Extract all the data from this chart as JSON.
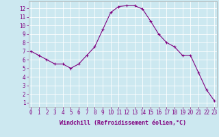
{
  "x": [
    0,
    1,
    2,
    3,
    4,
    5,
    6,
    7,
    8,
    9,
    10,
    11,
    12,
    13,
    14,
    15,
    16,
    17,
    18,
    19,
    20,
    21,
    22,
    23
  ],
  "y": [
    7,
    6.5,
    6,
    5.5,
    5.5,
    5,
    5.5,
    6.5,
    7.5,
    9.5,
    11.5,
    12.2,
    12.3,
    12.3,
    11.9,
    10.5,
    9,
    8,
    7.5,
    6.5,
    6.5,
    4.5,
    2.5,
    1.2
  ],
  "line_color": "#800080",
  "marker": "+",
  "bg_color": "#cce8f0",
  "grid_color": "#aacccc",
  "xlabel": "Windchill (Refroidissement éolien,°C)",
  "xlabel_color": "#800080",
  "tick_color": "#800080",
  "yticks": [
    1,
    2,
    3,
    4,
    5,
    6,
    7,
    8,
    9,
    10,
    11,
    12
  ],
  "xticks": [
    0,
    1,
    2,
    3,
    4,
    5,
    6,
    7,
    8,
    9,
    10,
    11,
    12,
    13,
    14,
    15,
    16,
    17,
    18,
    19,
    20,
    21,
    22,
    23
  ],
  "font_size": 5.5,
  "xlabel_fontsize": 6.0,
  "line_width": 0.8,
  "marker_size": 3,
  "marker_ew": 0.8,
  "xlim_left": -0.3,
  "xlim_right": 23.3,
  "ylim_bottom": 0.5,
  "ylim_top": 12.8
}
